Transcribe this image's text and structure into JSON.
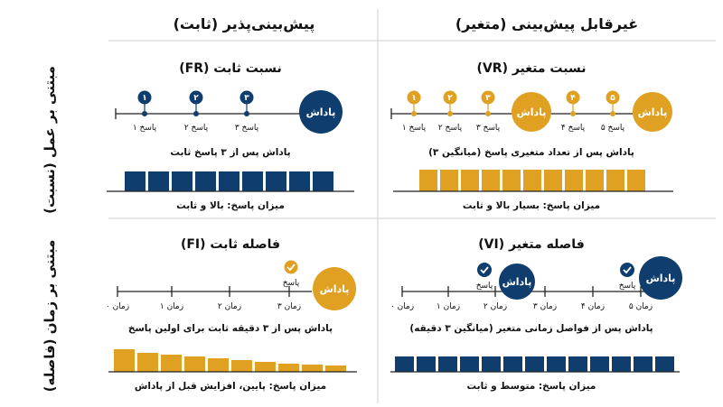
{
  "columns": {
    "left": "پیش‌بینی‌پذیر (ثابت)",
    "right": "غیرقابل پیش‌بینی (متغیر)"
  },
  "rows": {
    "top": "مبتنی بر عمل (نسبت)",
    "bottom": "مبتنی بر زمان (فاصله)"
  },
  "colors": {
    "navy": "#0e3d6e",
    "gold": "#e0a021"
  },
  "fr": {
    "title": "نسبت ثابت (FR)",
    "nums": [
      "۱",
      "۲",
      "۳"
    ],
    "labels": [
      "پاسخ ۱",
      "پاسخ ۲",
      "پاسخ ۳"
    ],
    "reward": "پاداش",
    "caption": "پاداش پس از ۳ پاسخ ثابت",
    "rate": "میزان پاسخ: بالا و ثابت"
  },
  "vr": {
    "title": "نسبت متغیر (VR)",
    "nums": [
      "۱",
      "۲",
      "۳",
      "۴",
      "۵"
    ],
    "labels": [
      "پاسخ ۱",
      "پاسخ ۲",
      "پاسخ ۳",
      "پاسخ ۴",
      "پاسخ ۵"
    ],
    "reward": "پاداش",
    "caption": "پاداش پس از تعداد متغیری پاسخ (میانگین ۳)",
    "rate": "میزان پاسخ: بسیار بالا و ثابت"
  },
  "fi": {
    "title": "فاصله ثابت (FI)",
    "times": [
      "زمان ۰",
      "زمان ۱",
      "زمان ۲",
      "زمان ۳"
    ],
    "response": "پاسخ",
    "reward": "پاداش",
    "caption": "پاداش پس از ۳ دقیقه ثابت برای اولین پاسخ",
    "rate": "میزان پاسخ: پایین، افزایش قبل از پاداش"
  },
  "vi": {
    "title": "فاصله متغیر (VI)",
    "times": [
      "زمان ۰",
      "زمان ۱",
      "زمان ۲",
      "زمان ۳",
      "زمان ۴",
      "زمان ۵"
    ],
    "response": "پاسخ",
    "reward": "پاداش",
    "caption": "پاداش پس از فواصل زمانی متغیر (میانگین ۳ دقیقه)",
    "rate": "میزان پاسخ: متوسط و ثابت"
  }
}
